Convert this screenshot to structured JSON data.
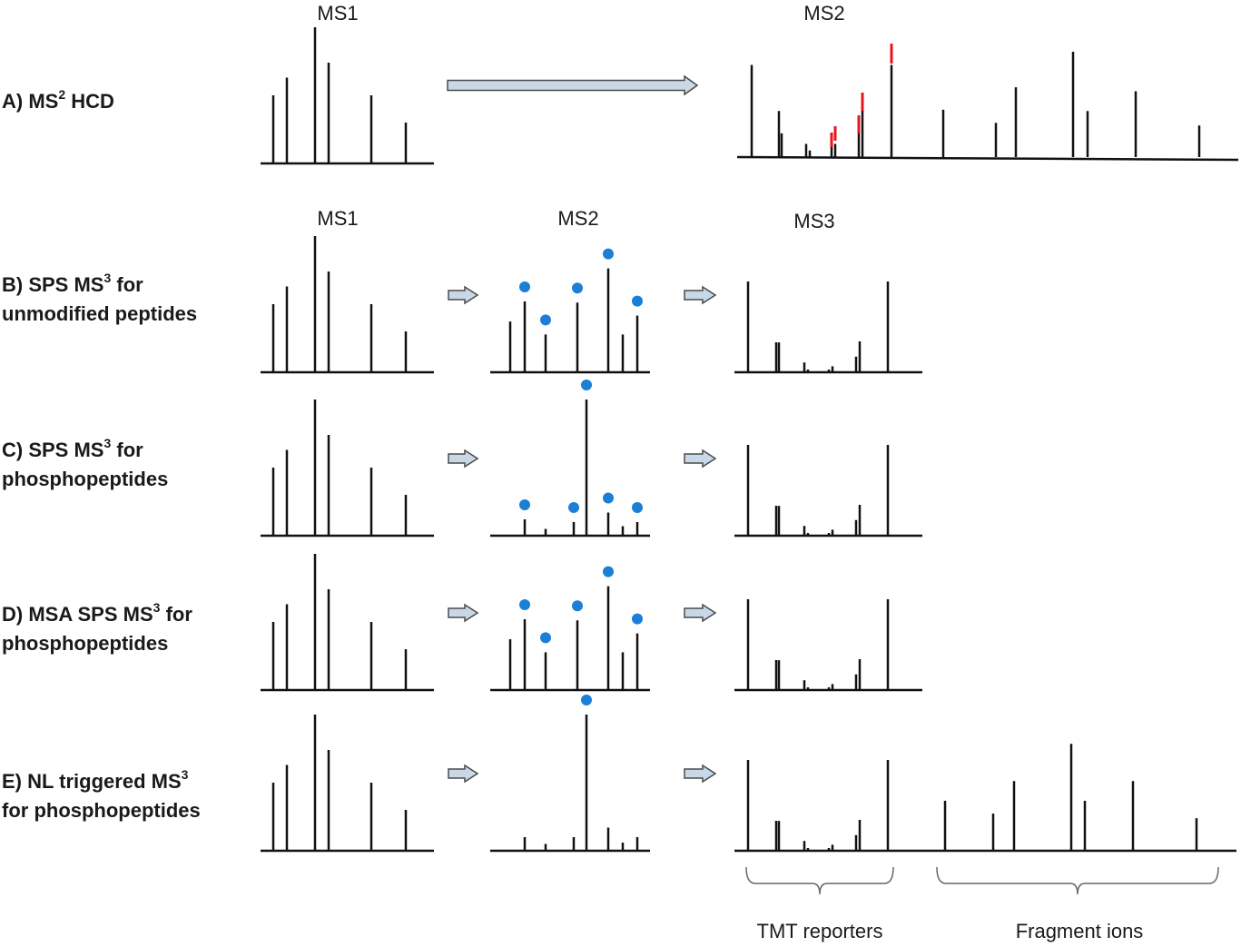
{
  "rows": [
    {
      "id": "A",
      "prefix": "A) MS",
      "sup": "2",
      "suffix": " HCD",
      "line2": ""
    },
    {
      "id": "B",
      "prefix": "B) SPS MS",
      "sup": "3",
      "suffix": " for",
      "line2": "unmodified peptides"
    },
    {
      "id": "C",
      "prefix": "C) SPS MS",
      "sup": "3",
      "suffix": " for",
      "line2": "phosphopeptides"
    },
    {
      "id": "D",
      "prefix": "D) MSA SPS MS",
      "sup": "3",
      "suffix": " for",
      "line2": "phosphopeptides"
    },
    {
      "id": "E",
      "prefix": "E) NL triggered MS",
      "sup": "3",
      "suffix": "",
      "line2": "for phosphopeptides"
    }
  ],
  "titles": {
    "a_ms1": "MS1",
    "a_ms2": "MS2",
    "b_ms1": "MS1",
    "b_ms2": "MS2",
    "b_ms3": "MS3"
  },
  "braces": {
    "tmt": "TMT reporters",
    "fragment": "Fragment ions"
  },
  "colors": {
    "peak": "#111111",
    "red_marker": "#e8141c",
    "blue_dot": "#1b7fd6",
    "arrow_fill": "#c9d8e6",
    "arrow_stroke": "#4a4a4a",
    "brace": "#666666"
  },
  "spectra": {
    "ms1_intensities": [
      0.5,
      0.63,
      1.0,
      0.74,
      0.5,
      0.3
    ],
    "ms2_unmod": {
      "intensities": [
        0.43,
        0.6,
        0.32,
        0.59,
        0.88,
        0.32,
        0.48
      ],
      "selected": [
        1,
        2,
        3,
        4,
        6
      ]
    },
    "ms2_phospho": {
      "intensities": [
        0.12,
        0.05,
        0.1,
        1.0,
        0.17,
        0.07,
        0.1
      ],
      "selected": [
        0,
        2,
        3,
        4,
        6
      ]
    },
    "ms2_msa": {
      "intensities": [
        0.43,
        0.6,
        0.32,
        0.59,
        0.88,
        0.32,
        0.48
      ],
      "selected": [
        1,
        2,
        3,
        4,
        6
      ]
    },
    "ms2_nl": {
      "intensities": [
        0.1,
        0.05,
        0.1,
        1.0,
        0.17,
        0.06,
        0.1
      ],
      "selected": [
        3
      ]
    },
    "ms3_reporters": [
      1.0,
      0.33,
      0.18,
      0.1,
      0.05,
      0.1,
      0.05,
      0.06,
      0.15,
      0.17,
      0.33,
      1.0
    ],
    "ms3_fragments": [
      0.43,
      0.32,
      0.6,
      0.92,
      0.43,
      0.6,
      0.28
    ],
    "ms2_hcd": [
      0.78,
      0.39,
      0.2,
      0.1,
      0.05,
      0.1,
      0.17,
      0.12,
      0.28,
      0.38,
      0.78,
      0.39,
      0.28,
      0.59,
      0.88,
      0.38,
      0.56,
      0.27
    ]
  }
}
